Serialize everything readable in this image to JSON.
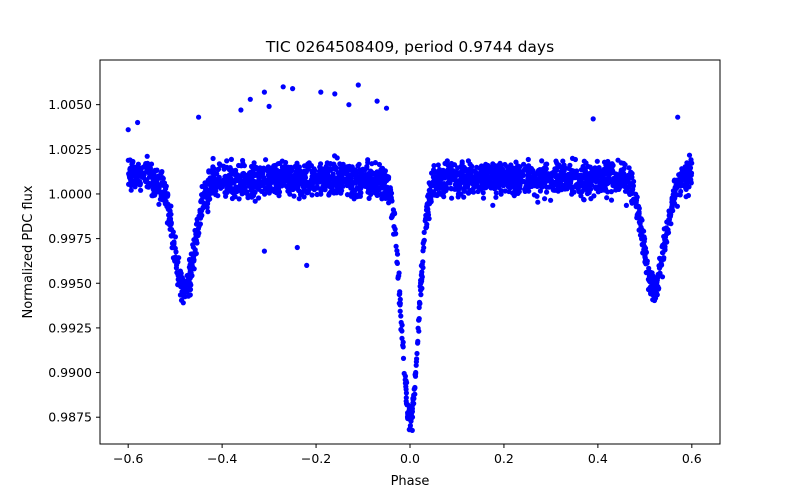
{
  "chart_data": {
    "type": "scatter",
    "title": "TIC 0264508409, period 0.9744 days",
    "xlabel": "Phase",
    "ylabel": "Normalized PDC flux",
    "xlim": [
      -0.66,
      0.66
    ],
    "ylim": [
      0.986,
      1.0075
    ],
    "x_ticks": [
      -0.6,
      -0.4,
      -0.2,
      0.0,
      0.2,
      0.4,
      0.6
    ],
    "x_tick_labels": [
      "−0.6",
      "−0.4",
      "−0.2",
      "0.0",
      "0.2",
      "0.4",
      "0.6"
    ],
    "y_ticks": [
      0.9875,
      0.99,
      0.9925,
      0.995,
      0.9975,
      1.0,
      1.0025,
      1.005
    ],
    "y_tick_labels": [
      "0.9875",
      "0.9900",
      "0.9925",
      "0.9950",
      "0.9975",
      "1.0000",
      "1.0025",
      "1.0050"
    ],
    "grid": false,
    "marker_color": "#0000ff",
    "series": [
      {
        "phase_range": [
          -0.6,
          0.6
        ],
        "baseline_flux": 1.0008,
        "scatter_halfwidth": 0.0016,
        "primary_eclipse": {
          "phase": 0.0,
          "min_flux": 0.9873
        },
        "secondary_eclipses": [
          {
            "phase": -0.48,
            "min_flux": 0.9935
          },
          {
            "phase": 0.52,
            "min_flux": 0.9935
          }
        ],
        "outliers": [
          [
            -0.34,
            1.0053
          ],
          [
            -0.31,
            1.0057
          ],
          [
            -0.27,
            1.006
          ],
          [
            -0.25,
            1.0059
          ],
          [
            -0.19,
            1.0057
          ],
          [
            -0.16,
            1.0056
          ],
          [
            -0.11,
            1.0061
          ],
          [
            -0.07,
            1.0052
          ],
          [
            -0.05,
            1.0048
          ],
          [
            -0.36,
            1.0047
          ],
          [
            -0.3,
            1.0049
          ],
          [
            -0.13,
            1.005
          ],
          [
            -0.22,
            0.996
          ],
          [
            -0.24,
            0.997
          ],
          [
            -0.31,
            0.9968
          ],
          [
            -0.45,
            1.0043
          ],
          [
            0.39,
            1.0042
          ],
          [
            0.57,
            1.0043
          ],
          [
            -0.6,
            1.0036
          ],
          [
            -0.58,
            1.004
          ]
        ]
      }
    ]
  }
}
